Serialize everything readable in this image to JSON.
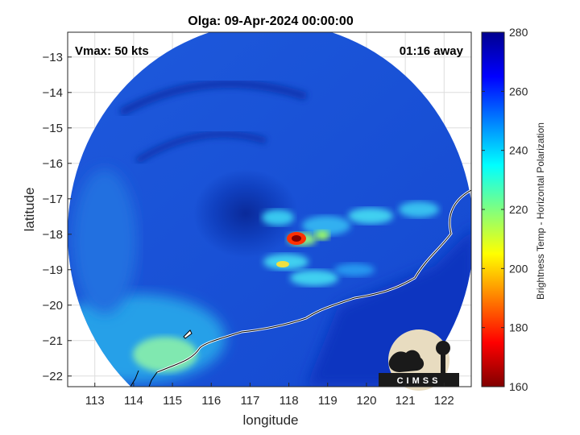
{
  "chart_data": {
    "type": "heatmap",
    "title": "Olga: 09-Apr-2024 00:00:00",
    "xlabel": "longitude",
    "ylabel": "latitude",
    "xlim": [
      112.3,
      122.7
    ],
    "ylim": [
      -22.3,
      -12.3
    ],
    "x_ticks": [
      113,
      114,
      115,
      116,
      117,
      118,
      119,
      120,
      121,
      122
    ],
    "y_ticks": [
      -13,
      -14,
      -15,
      -16,
      -17,
      -18,
      -19,
      -20,
      -21,
      -22
    ],
    "grid": true,
    "annotations": {
      "vmax": "Vmax: 50 kts",
      "time_away": "01:16 away"
    },
    "colorbar": {
      "label": "Brightness Temp - Horizontal Polarization",
      "range": [
        160,
        280
      ],
      "ticks": [
        160,
        180,
        200,
        220,
        240,
        260,
        280
      ],
      "colormap": "jet"
    },
    "storm_center": [
      117.3,
      -17.6
    ],
    "coldest_cell": {
      "lon": 118.0,
      "lat": -18.05,
      "value": 165
    }
  },
  "logo": {
    "text": "CIMSS"
  }
}
